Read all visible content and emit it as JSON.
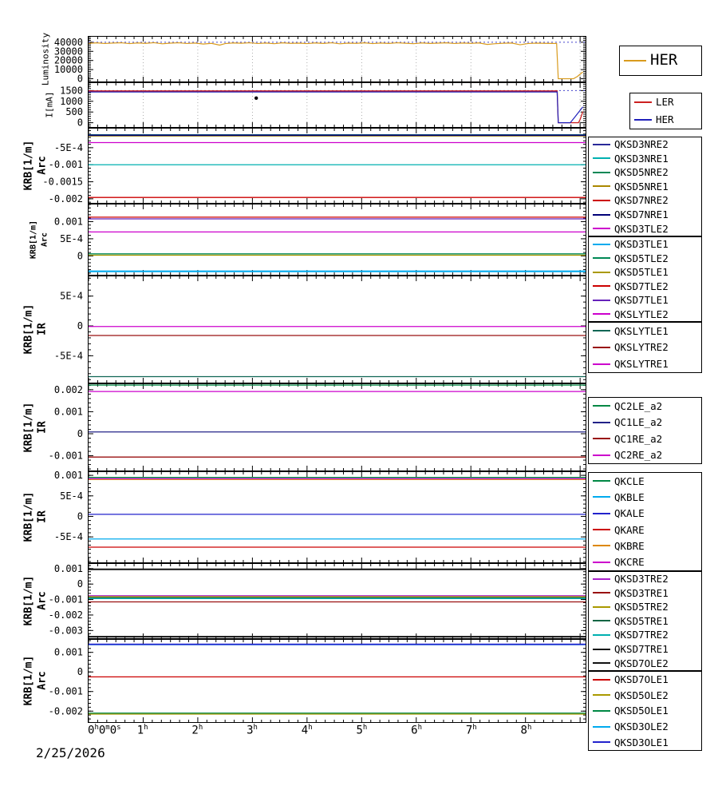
{
  "xaxis": {
    "lim": [
      0,
      9.1
    ],
    "date": "2/25/2026",
    "ticks": [
      {
        "v": 0,
        "align": "left",
        "segs": [
          [
            "0",
            0
          ],
          [
            "h",
            1
          ],
          [
            "0",
            0
          ],
          [
            "m",
            1
          ],
          [
            "0",
            0
          ],
          [
            "s",
            1
          ]
        ]
      },
      {
        "v": 1,
        "segs": [
          [
            "1",
            0
          ],
          [
            "h",
            1
          ]
        ]
      },
      {
        "v": 2,
        "segs": [
          [
            "2",
            0
          ],
          [
            "h",
            1
          ]
        ]
      },
      {
        "v": 3,
        "segs": [
          [
            "3",
            0
          ],
          [
            "h",
            1
          ]
        ]
      },
      {
        "v": 4,
        "segs": [
          [
            "4",
            0
          ],
          [
            "h",
            1
          ]
        ]
      },
      {
        "v": 5,
        "segs": [
          [
            "5",
            0
          ],
          [
            "h",
            1
          ]
        ]
      },
      {
        "v": 6,
        "segs": [
          [
            "6",
            0
          ],
          [
            "h",
            1
          ]
        ]
      },
      {
        "v": 7,
        "segs": [
          [
            "7",
            0
          ],
          [
            "h",
            1
          ]
        ]
      },
      {
        "v": 8,
        "segs": [
          [
            "8",
            0
          ],
          [
            "h",
            1
          ]
        ]
      }
    ]
  },
  "chart_data": [
    {
      "id": "luminosity",
      "type": "line",
      "axis_label": "Luminosity",
      "axis_sublabel": "",
      "ylim": [
        -3000,
        46000
      ],
      "xgrid": true,
      "yticks": [
        {
          "v": 0,
          "t": "0"
        },
        {
          "v": 10000,
          "t": "10000"
        },
        {
          "v": 20000,
          "t": "20000"
        },
        {
          "v": 30000,
          "t": "30000"
        },
        {
          "v": 40000,
          "t": "40000"
        }
      ],
      "ref_lines": [
        {
          "v": 40000,
          "color": "#4444cc"
        }
      ],
      "series": [
        {
          "name": "HER",
          "color": "#d99b1d",
          "width": 1.2,
          "points": [
            [
              0,
              38800
            ],
            [
              0.15,
              39300
            ],
            [
              0.3,
              38600
            ],
            [
              0.45,
              39100
            ],
            [
              0.6,
              39400
            ],
            [
              0.75,
              38500
            ],
            [
              0.9,
              39200
            ],
            [
              1.05,
              38800
            ],
            [
              1.2,
              39500
            ],
            [
              1.35,
              38300
            ],
            [
              1.5,
              39000
            ],
            [
              1.65,
              39400
            ],
            [
              1.8,
              38600
            ],
            [
              1.95,
              39100
            ],
            [
              2.1,
              38000
            ],
            [
              2.25,
              38800
            ],
            [
              2.4,
              36800
            ],
            [
              2.5,
              38500
            ],
            [
              2.65,
              39200
            ],
            [
              2.8,
              38900
            ],
            [
              2.95,
              39400
            ],
            [
              3.1,
              38600
            ],
            [
              3.25,
              39100
            ],
            [
              3.4,
              38400
            ],
            [
              3.55,
              39300
            ],
            [
              3.7,
              38800
            ],
            [
              3.85,
              39000
            ],
            [
              4.0,
              38500
            ],
            [
              4.15,
              39200
            ],
            [
              4.3,
              38700
            ],
            [
              4.45,
              39400
            ],
            [
              4.6,
              38300
            ],
            [
              4.75,
              39000
            ],
            [
              4.9,
              38800
            ],
            [
              5.05,
              39300
            ],
            [
              5.2,
              38500
            ],
            [
              5.35,
              39100
            ],
            [
              5.5,
              38700
            ],
            [
              5.65,
              39400
            ],
            [
              5.8,
              38900
            ],
            [
              5.95,
              38400
            ],
            [
              6.1,
              39200
            ],
            [
              6.25,
              38700
            ],
            [
              6.4,
              39000
            ],
            [
              6.55,
              39300
            ],
            [
              6.7,
              38600
            ],
            [
              6.85,
              39100
            ],
            [
              7.0,
              38800
            ],
            [
              7.15,
              39200
            ],
            [
              7.3,
              37600
            ],
            [
              7.45,
              38400
            ],
            [
              7.6,
              38900
            ],
            [
              7.75,
              39100
            ],
            [
              7.9,
              37200
            ],
            [
              8.05,
              38600
            ],
            [
              8.2,
              39000
            ],
            [
              8.35,
              38800
            ],
            [
              8.5,
              38700
            ],
            [
              8.57,
              38600
            ],
            [
              8.6,
              0
            ],
            [
              8.88,
              0
            ],
            [
              8.95,
              2500
            ],
            [
              9.05,
              7500
            ]
          ]
        }
      ]
    },
    {
      "id": "beam-current",
      "type": "line",
      "axis_label": "I[mA]",
      "axis_sublabel": "",
      "ylim": [
        -200,
        1850
      ],
      "xgrid": true,
      "yticks": [
        {
          "v": 0,
          "t": "0"
        },
        {
          "v": 500,
          "t": "500"
        },
        {
          "v": 1000,
          "t": "1000"
        },
        {
          "v": 1500,
          "t": "1500"
        }
      ],
      "ref_lines": [
        {
          "v": 1500,
          "color": "#4444cc"
        }
      ],
      "markers": [
        {
          "x": 3.07,
          "v": 1150
        }
      ],
      "series": [
        {
          "name": "LER",
          "color": "#cc2020",
          "width": 1.3,
          "points": [
            [
              0,
              1485
            ],
            [
              8.58,
              1485
            ],
            [
              8.6,
              0
            ],
            [
              8.97,
              0
            ],
            [
              9.0,
              150
            ],
            [
              9.05,
              520
            ]
          ]
        },
        {
          "name": "HER",
          "color": "#2020bb",
          "width": 1.2,
          "points": [
            [
              0,
              1435
            ],
            [
              8.58,
              1435
            ],
            [
              8.6,
              0
            ],
            [
              8.82,
              0
            ],
            [
              8.9,
              250
            ],
            [
              9.05,
              740
            ]
          ]
        }
      ]
    },
    {
      "id": "krb-arc-nre",
      "type": "line",
      "axis_label": "KRB[1/m]",
      "axis_sublabel": "Arc",
      "ylim": [
        -0.00212,
        6e-05
      ],
      "yticks": [
        {
          "v": -0.002,
          "t": "-0.002"
        },
        {
          "v": -0.0015,
          "t": "-0.0015"
        },
        {
          "v": -0.001,
          "t": "-0.001"
        },
        {
          "v": -0.0005,
          "t": "-5E-4"
        }
      ],
      "series": [
        {
          "name": "QKSD3NRE2",
          "color": "#2a2a99",
          "value": -0.00012
        },
        {
          "name": "QKSD3NRE1",
          "color": "#00b0b0",
          "value": -0.001
        },
        {
          "name": "QKSD5NRE2",
          "color": "#008855",
          "value": -0.00013
        },
        {
          "name": "QKSD5NRE1",
          "color": "#aa8800",
          "value": -0.000155
        },
        {
          "name": "QKSD7NRE2",
          "color": "#cc0000",
          "value": -0.00196
        },
        {
          "name": "QKSD7NRE1",
          "color": "#000077",
          "value": -0.00014
        },
        {
          "name": "QKSD3TLE2",
          "color": "#cc00cc",
          "value": -0.00035
        }
      ]
    },
    {
      "id": "krb-arc-tle",
      "type": "line",
      "axis_label": "KRB[1/m]",
      "axis_sublabel": "Arc",
      "ylim": [
        -0.00055,
        0.0015
      ],
      "yticks": [
        {
          "v": 0,
          "t": "0"
        },
        {
          "v": 0.0005,
          "t": "5E-4"
        },
        {
          "v": 0.001,
          "t": "0.001"
        }
      ],
      "series": [
        {
          "name": "QKSD3TLE1",
          "color": "#00aaee",
          "width": 2.2,
          "value": -0.00045
        },
        {
          "name": "QKSD5TLE2",
          "color": "#008855",
          "value": 6e-05
        },
        {
          "name": "QKSD5TLE1",
          "color": "#aa9900",
          "value": 2e-05
        },
        {
          "name": "QKSD7TLE2",
          "color": "#cc0000",
          "value": 0.00113
        },
        {
          "name": "QKSD7TLE1",
          "color": "#6622bb",
          "value": 0.00108
        },
        {
          "name": "QKSLYTLE2",
          "color": "#cc00cc",
          "value": 0.0007
        }
      ]
    },
    {
      "id": "krb-ir-ly",
      "type": "line",
      "axis_label": "KRB[1/m]",
      "axis_sublabel": "IR",
      "ylim": [
        -0.00095,
        0.00083
      ],
      "yticks": [
        {
          "v": -0.0005,
          "t": "-5E-4"
        },
        {
          "v": 0,
          "t": "0"
        },
        {
          "v": 0.0005,
          "t": "5E-4"
        }
      ],
      "series": [
        {
          "name": "QKSLYTLE1",
          "color": "#116655",
          "value": -0.00085
        },
        {
          "name": "QKSLYTRE2",
          "color": "#991111",
          "value": -0.00016
        },
        {
          "name": "QKSLYTRE1",
          "color": "#cc00cc",
          "value": -1e-05
        }
      ]
    },
    {
      "id": "krb-ir-qc",
      "type": "line",
      "axis_label": "KRB[1/m]",
      "axis_sublabel": "IR",
      "ylim": [
        -0.00167,
        0.00225
      ],
      "yticks": [
        {
          "v": -0.001,
          "t": "-0.001"
        },
        {
          "v": 0,
          "t": "0"
        },
        {
          "v": 0.001,
          "t": "0.001"
        },
        {
          "v": 0.002,
          "t": "0.002"
        }
      ],
      "series": [
        {
          "name": "QC2LE_a2",
          "color": "#008844",
          "value": 0.00221
        },
        {
          "name": "QC1LE_a2",
          "color": "#222288",
          "value": 8e-05
        },
        {
          "name": "QC1RE_a2",
          "color": "#991111",
          "value": -0.00106
        },
        {
          "name": "QC2RE_a2",
          "color": "#cc00cc",
          "value": 0.00192
        }
      ]
    },
    {
      "id": "krb-ir-qk",
      "type": "line",
      "axis_label": "KRB[1/m]",
      "axis_sublabel": "IR",
      "ylim": [
        -0.00112,
        0.00108
      ],
      "yticks": [
        {
          "v": -0.0005,
          "t": "-5E-4"
        },
        {
          "v": 0,
          "t": "0"
        },
        {
          "v": 0.0005,
          "t": "5E-4"
        },
        {
          "v": 0.001,
          "t": "0.001"
        }
      ],
      "series": [
        {
          "name": "QKCLE",
          "color": "#008844",
          "value": 0.00095
        },
        {
          "name": "QKBLE",
          "color": "#00aaee",
          "value": -0.00055
        },
        {
          "name": "QKALE",
          "color": "#2222cc",
          "value": 5e-05
        },
        {
          "name": "QKARE",
          "color": "#cc0000",
          "value": -0.00075
        },
        {
          "name": "QKBRE",
          "color": "#dd8800",
          "value": 0.0009
        },
        {
          "name": "QKCRE",
          "color": "#cc00cc",
          "value": 0.00092
        }
      ]
    },
    {
      "id": "krb-arc-tre",
      "type": "line",
      "axis_label": "KRB[1/m]",
      "axis_sublabel": "Arc",
      "ylim": [
        -0.0035,
        0.0013
      ],
      "yticks": [
        {
          "v": -0.003,
          "t": "-0.003"
        },
        {
          "v": -0.002,
          "t": "-0.002"
        },
        {
          "v": -0.001,
          "t": "-0.001"
        },
        {
          "v": 0,
          "t": "0"
        },
        {
          "v": 0.001,
          "t": "0.001"
        }
      ],
      "series": [
        {
          "name": "QKSD3TRE2",
          "color": "#aa22cc",
          "value": -0.00075
        },
        {
          "name": "QKSD3TRE1",
          "color": "#991111",
          "value": -0.00115
        },
        {
          "name": "QKSD5TRE2",
          "color": "#aa9900",
          "value": -0.00082
        },
        {
          "name": "QKSD5TRE1",
          "color": "#116644",
          "value": -0.00088
        },
        {
          "name": "QKSD7TRE2",
          "color": "#00b0b0",
          "value": -0.00094
        },
        {
          "name": "QKSD7TRE1",
          "color": "#111111",
          "width": 2,
          "value": 0.00095
        },
        {
          "name": "QKSD7OLE2",
          "color": "#111111",
          "width": 2,
          "value": -0.0034
        }
      ]
    },
    {
      "id": "krb-arc-ole",
      "type": "line",
      "axis_label": "KRB[1/m]",
      "axis_sublabel": "Arc",
      "ylim": [
        -0.00256,
        0.00164
      ],
      "yticks": [
        {
          "v": -0.002,
          "t": "-0.002"
        },
        {
          "v": -0.001,
          "t": "-0.001"
        },
        {
          "v": 0,
          "t": "0"
        },
        {
          "v": 0.001,
          "t": "0.001"
        }
      ],
      "series": [
        {
          "name": "QKSD7OLE1",
          "color": "#cc0000",
          "value": -0.00025
        },
        {
          "name": "QKSD5OLE2",
          "color": "#aa9900",
          "value": -0.00215
        },
        {
          "name": "QKSD5OLE1",
          "color": "#008844",
          "value": -0.0021
        },
        {
          "name": "QKSD3OLE2",
          "color": "#00aaee",
          "value": 0.00139
        },
        {
          "name": "QKSD3OLE1",
          "color": "#2222cc",
          "width": 1.8,
          "value": 0.00141
        }
      ]
    }
  ]
}
